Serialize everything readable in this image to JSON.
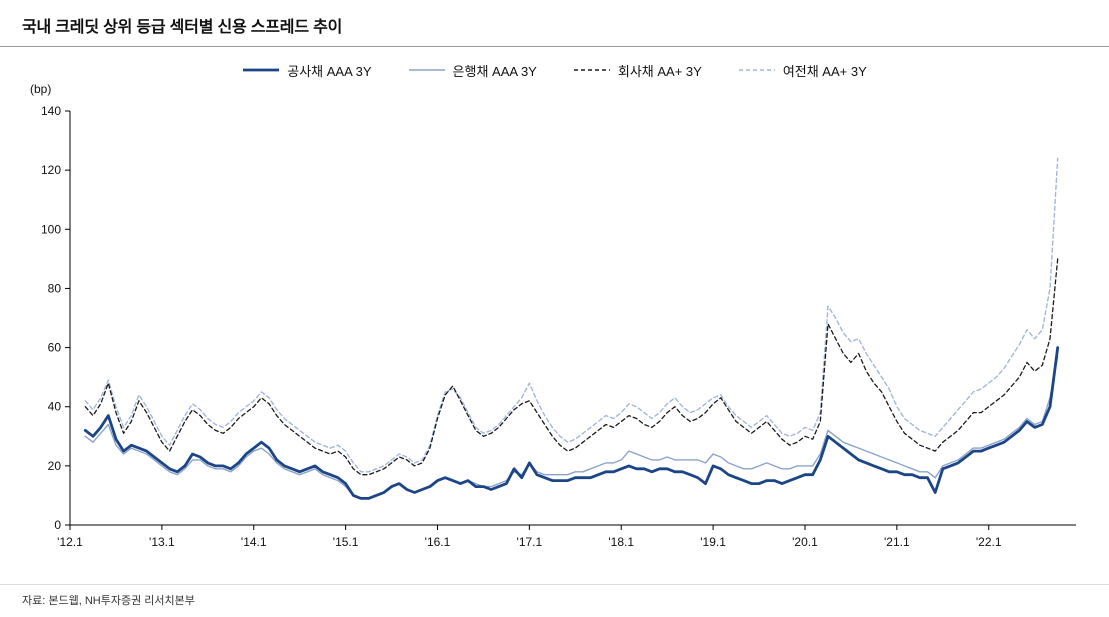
{
  "header": {
    "title": "국내 크레딧 상위 등급 섹터별 신용 스프레드 추이"
  },
  "footer": {
    "source": "자료: 본드웹, NH투자증권 리서치본부"
  },
  "chart_data": {
    "type": "line",
    "title": "국내 크레딧 상위 등급 섹터별 신용 스프레드 추이",
    "xlabel": "",
    "ylabel": "(bp)",
    "ylim": [
      0,
      140
    ],
    "yticks": [
      0,
      20,
      40,
      60,
      80,
      100,
      120,
      140
    ],
    "xtick_years": [
      2012,
      2013,
      2014,
      2015,
      2016,
      2017,
      2018,
      2019,
      2020,
      2021,
      2022
    ],
    "xtick_labels": [
      "'12.1",
      "'13.1",
      "'14.1",
      "'15.1",
      "'16.1",
      "'17.1",
      "'18.1",
      "'19.1",
      "'20.1",
      "'21.1",
      "'22.1"
    ],
    "x_range": [
      2012.0,
      2022.95
    ],
    "x_start": 2012.167,
    "x_step": 0.083333,
    "grid": false,
    "legend_position": "top",
    "series": [
      {
        "name": "공사채 AAA 3Y",
        "color": "#1c4587",
        "width": 2.8,
        "dash": "",
        "values": [
          32,
          30,
          33,
          37,
          29,
          25,
          27,
          26,
          25,
          23,
          21,
          19,
          18,
          20,
          24,
          23,
          21,
          20,
          20,
          19,
          21,
          24,
          26,
          28,
          26,
          22,
          20,
          19,
          18,
          19,
          20,
          18,
          17,
          16,
          14,
          10,
          9,
          9,
          10,
          11,
          13,
          14,
          12,
          11,
          12,
          13,
          15,
          16,
          15,
          14,
          15,
          13,
          13,
          12,
          13,
          14,
          19,
          16,
          21,
          17,
          16,
          15,
          15,
          15,
          16,
          16,
          16,
          17,
          18,
          18,
          19,
          20,
          19,
          19,
          18,
          19,
          19,
          18,
          18,
          17,
          16,
          14,
          20,
          19,
          17,
          16,
          15,
          14,
          14,
          15,
          15,
          14,
          15,
          16,
          17,
          17,
          22,
          30,
          28,
          26,
          24,
          22,
          21,
          20,
          19,
          18,
          18,
          17,
          17,
          16,
          16,
          11,
          19,
          20,
          21,
          23,
          25,
          25,
          26,
          27,
          28,
          30,
          32,
          35,
          33,
          34,
          40,
          60
        ]
      },
      {
        "name": "은행채 AAA 3Y",
        "color": "#8ba3c9",
        "width": 1.4,
        "dash": "",
        "values": [
          30,
          28,
          31,
          34,
          27,
          24,
          26,
          25,
          24,
          22,
          20,
          18,
          17,
          19,
          22,
          22,
          20,
          19,
          19,
          18,
          20,
          23,
          25,
          26,
          24,
          21,
          19,
          18,
          17,
          18,
          19,
          17,
          16,
          15,
          13,
          10,
          9,
          9,
          10,
          11,
          13,
          14,
          12,
          11,
          12,
          13,
          15,
          16,
          15,
          14,
          15,
          14,
          13,
          13,
          14,
          15,
          18,
          17,
          21,
          18,
          17,
          17,
          17,
          17,
          18,
          18,
          19,
          20,
          21,
          21,
          22,
          25,
          24,
          23,
          22,
          22,
          23,
          22,
          22,
          22,
          22,
          21,
          24,
          23,
          21,
          20,
          19,
          19,
          20,
          21,
          20,
          19,
          19,
          20,
          20,
          20,
          24,
          32,
          30,
          28,
          27,
          26,
          25,
          24,
          23,
          22,
          21,
          20,
          19,
          18,
          18,
          16,
          20,
          21,
          22,
          24,
          26,
          26,
          27,
          28,
          29,
          31,
          33,
          36,
          34,
          35,
          43,
          57
        ]
      },
      {
        "name": "회사채 AA+ 3Y",
        "color": "#1a1a1a",
        "width": 1.3,
        "dash": "4 3",
        "values": [
          40,
          37,
          41,
          48,
          38,
          31,
          35,
          42,
          38,
          33,
          28,
          25,
          30,
          35,
          39,
          37,
          34,
          32,
          31,
          33,
          36,
          38,
          40,
          43,
          41,
          37,
          34,
          32,
          30,
          28,
          26,
          25,
          24,
          25,
          23,
          19,
          17,
          17,
          18,
          19,
          21,
          23,
          22,
          20,
          21,
          26,
          36,
          44,
          47,
          42,
          37,
          32,
          30,
          31,
          33,
          36,
          39,
          41,
          42,
          38,
          34,
          30,
          27,
          25,
          26,
          28,
          30,
          32,
          34,
          33,
          35,
          37,
          36,
          34,
          33,
          35,
          38,
          40,
          37,
          35,
          36,
          38,
          41,
          43,
          39,
          35,
          33,
          31,
          33,
          35,
          32,
          29,
          27,
          28,
          30,
          29,
          35,
          68,
          63,
          58,
          55,
          58,
          52,
          48,
          45,
          40,
          35,
          31,
          29,
          27,
          26,
          25,
          28,
          30,
          32,
          35,
          38,
          38,
          40,
          42,
          44,
          47,
          50,
          55,
          52,
          54,
          63,
          90
        ]
      },
      {
        "name": "여전채 AA+ 3Y",
        "color": "#a3b6da",
        "width": 1.4,
        "dash": "4 3",
        "values": [
          42,
          39,
          43,
          49,
          40,
          33,
          37,
          44,
          40,
          35,
          30,
          27,
          32,
          37,
          41,
          39,
          36,
          34,
          33,
          35,
          38,
          40,
          42,
          45,
          43,
          39,
          36,
          34,
          32,
          30,
          28,
          27,
          26,
          27,
          25,
          21,
          18,
          18,
          19,
          20,
          22,
          24,
          23,
          21,
          22,
          27,
          37,
          45,
          46,
          43,
          38,
          33,
          31,
          32,
          34,
          37,
          40,
          43,
          48,
          42,
          37,
          33,
          30,
          28,
          29,
          31,
          33,
          35,
          37,
          36,
          38,
          41,
          40,
          38,
          36,
          38,
          41,
          43,
          40,
          38,
          39,
          41,
          43,
          44,
          40,
          37,
          35,
          33,
          35,
          37,
          34,
          31,
          30,
          31,
          33,
          32,
          38,
          74,
          70,
          65,
          62,
          63,
          58,
          54,
          50,
          46,
          40,
          36,
          34,
          32,
          31,
          30,
          33,
          36,
          39,
          42,
          45,
          46,
          48,
          50,
          53,
          57,
          61,
          66,
          63,
          66,
          80,
          124
        ]
      }
    ]
  }
}
